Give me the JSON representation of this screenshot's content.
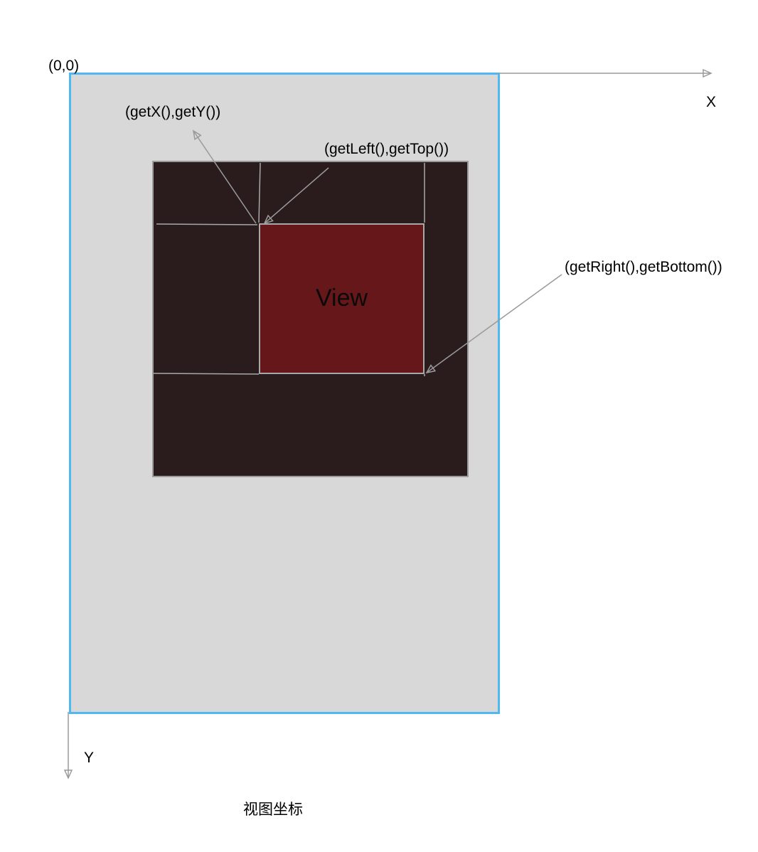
{
  "origin_label": "(0,0)",
  "x_axis_label": "X",
  "y_axis_label": "Y",
  "view_label": "View",
  "annotations": {
    "get_xy": "(getX(),getY())",
    "get_left_top": "(getLeft(),getTop())",
    "get_right_bottom": "(getRight(),getBottom())"
  },
  "caption": "视图坐标",
  "colors": {
    "screen_border": "#4fb8f0",
    "screen_fill": "#d8d8d8",
    "parent_fill": "#2a1c1d",
    "view_fill": "#66171a",
    "line": "#9a9a9a"
  }
}
